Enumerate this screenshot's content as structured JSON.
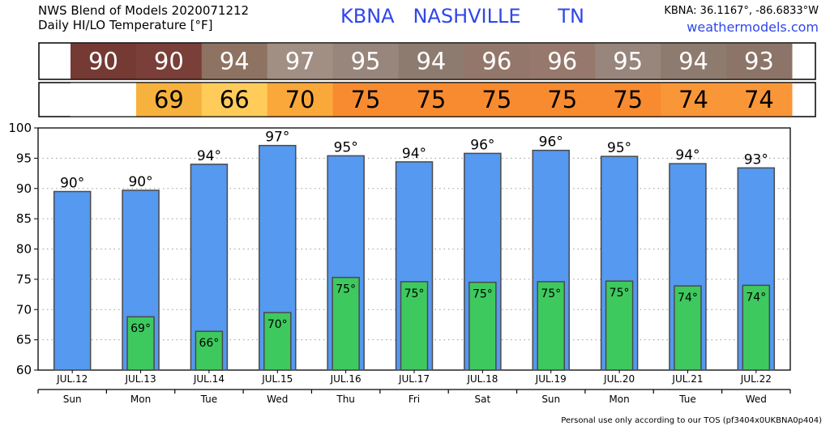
{
  "header": {
    "title_line1": "NWS Blend of Models 2020071212",
    "title_line2": "Daily HI/LO Temperature [°F]",
    "station": "KBNA   NASHVILLE      TN",
    "coords": "KBNA: 36.1167°, -86.6833°W",
    "site": "weathermodels.com"
  },
  "footer": {
    "text": "Personal use only according to our TOS (pf3404x0UKBNA0p404)"
  },
  "colors": {
    "hi_bar": "#5599f0",
    "lo_bar": "#3ec95e",
    "hi_strip": [
      "#753a34",
      "#7a3f38",
      "#8e7363",
      "#a28f84",
      "#98857c",
      "#8e7b70",
      "#94776b",
      "#96796c",
      "#98857c",
      "#8e7b70",
      "#8c7568"
    ],
    "lo_strip": [
      "#ffffff",
      "#f7b23e",
      "#ffcc5a",
      "#fba83a",
      "#f88b30",
      "#f88b30",
      "#f88b30",
      "#f88b30",
      "#f88b30",
      "#f99638",
      "#f99638"
    ]
  },
  "chart_data": {
    "type": "bar",
    "title": "Daily HI/LO Temperature [°F]",
    "categories": [
      "JUL.12",
      "JUL.13",
      "JUL.14",
      "JUL.15",
      "JUL.16",
      "JUL.17",
      "JUL.18",
      "JUL.19",
      "JUL.20",
      "JUL.21",
      "JUL.22"
    ],
    "day_of_week": [
      "Sun",
      "Mon",
      "Tue",
      "Wed",
      "Thu",
      "Fri",
      "Sat",
      "Sun",
      "Mon",
      "Tue",
      "Wed"
    ],
    "series": [
      {
        "name": "HI",
        "values": [
          89.5,
          89.7,
          94.0,
          97.1,
          95.4,
          94.4,
          95.8,
          96.3,
          95.3,
          94.1,
          93.4
        ],
        "labels": [
          "90°",
          "90°",
          "94°",
          "97°",
          "95°",
          "94°",
          "96°",
          "96°",
          "95°",
          "94°",
          "93°"
        ]
      },
      {
        "name": "LO",
        "values": [
          null,
          68.8,
          66.4,
          69.5,
          75.3,
          74.6,
          74.5,
          74.6,
          74.7,
          73.9,
          74.0
        ],
        "labels": [
          "",
          "69°",
          "66°",
          "70°",
          "75°",
          "75°",
          "75°",
          "75°",
          "75°",
          "74°",
          "74°"
        ]
      }
    ],
    "hi_strip": [
      "90",
      "90",
      "94",
      "97",
      "95",
      "94",
      "96",
      "96",
      "95",
      "94",
      "93"
    ],
    "lo_strip": [
      "",
      "69",
      "66",
      "70",
      "75",
      "75",
      "75",
      "75",
      "75",
      "74",
      "74"
    ],
    "ylim": [
      60,
      100
    ],
    "yticks": [
      60,
      65,
      70,
      75,
      80,
      85,
      90,
      95,
      100
    ],
    "grid": true
  }
}
